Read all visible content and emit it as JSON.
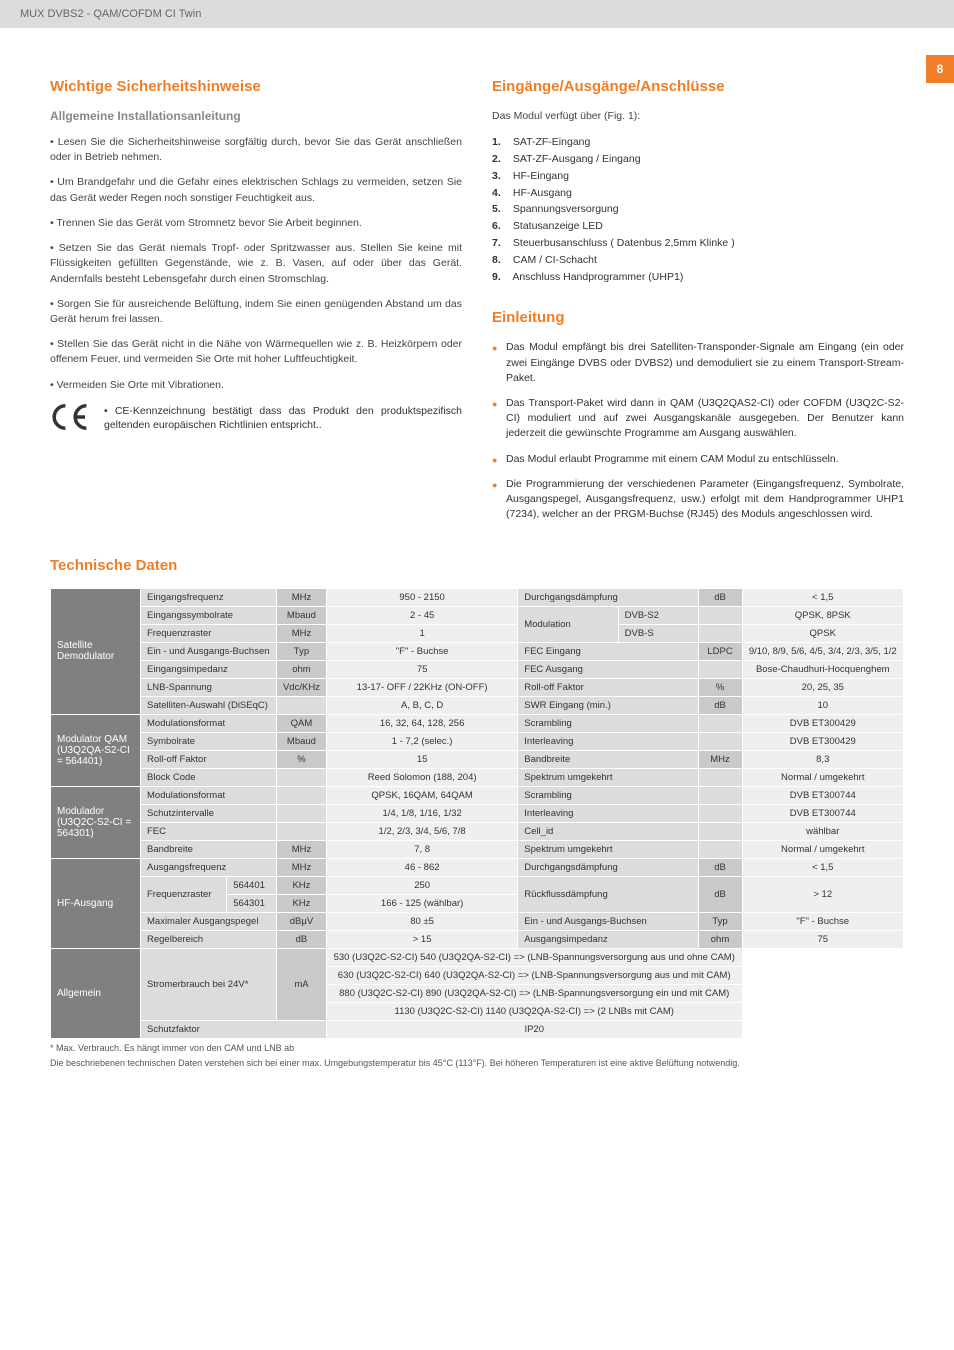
{
  "header": {
    "product": "MUX DVBS2 - QAM/COFDM CI Twin",
    "page_number": "8"
  },
  "colors": {
    "accent": "#f07e26",
    "side_bg": "#808080",
    "lbl_bg": "#dcdcdc",
    "unit_bg": "#c9c9c9",
    "val_bg": "#efefef"
  },
  "left": {
    "title": "Wichtige Sicherheitshinweise",
    "subtitle": "Allgemeine Installationsanleitung",
    "paras": [
      "• Lesen Sie die Sicherheitshinweise sorgfältig durch, bevor Sie das Gerät anschließen oder in Betrieb nehmen.",
      "• Um Brandgefahr und die Gefahr eines elektrischen Schlags zu vermeiden, setzen Sie das Gerät weder Regen noch sonstiger Feuchtigkeit aus.",
      "• Trennen Sie das Gerät vom Stromnetz bevor Sie Arbeit beginnen.",
      "• Setzen Sie das Gerät niemals Tropf- oder Spritzwasser aus. Stellen Sie keine mit Flüssigkeiten gefüllten Gegenstände, wie z. B. Vasen, auf oder über das Gerät. Andernfalls besteht Lebensgefahr durch einen Stromschlag.",
      "• Sorgen Sie für ausreichende Belüftung, indem Sie einen genügenden Abstand um das Gerät herum frei lassen.",
      "• Stellen Sie das Gerät nicht in die Nähe von Wärmequellen wie z. B. Heizkörpern oder offenem Feuer, und vermeiden Sie Orte mit hoher Luftfeuchtigkeit.",
      "• Vermeiden Sie Orte mit Vibrationen."
    ],
    "ce": "• CE-Kennzeichnung bestätigt dass das Produkt den produktspezifisch geltenden europäischen Richtlinien entspricht.."
  },
  "right": {
    "io_title": "Eingänge/Ausgänge/Anschlüsse",
    "io_intro": "Das Modul verfügt über (Fig. 1):",
    "io_list": [
      "SAT-ZF-Eingang",
      "SAT-ZF-Ausgang / Eingang",
      "HF-Eingang",
      "HF-Ausgang",
      "Spannungsversorgung",
      "Statusanzeige LED",
      "Steuerbusanschluss  ( Datenbus 2,5mm Klinke )",
      "CAM / CI-Schacht",
      "Anschluss Handprogrammer (UHP1)"
    ],
    "intro_title": "Einleitung",
    "intro_bullets": [
      "Das Modul empfängt bis drei Satelliten-Transponder-Signale am Eingang (ein oder zwei Eingänge DVBS oder DVBS2) und demoduliert sie zu einem Transport-Stream-Paket.",
      "Das Transport-Paket wird dann in QAM (U3Q2QAS2-CI) oder COFDM (U3Q2C-S2-CI) moduliert und auf zwei Ausgangskanäle ausgegeben. Der Benutzer kann jederzeit die gewünschte Programme am Ausgang auswählen.",
      "Das Modul erlaubt Programme mit einem CAM Modul zu entschlüsseln.",
      "Die Programmierung der verschiedenen Parameter (Eingangsfrequenz, Symbolrate, Ausgangspegel, Ausgangsfrequenz, usw.) erfolgt mit dem Handprogrammer UHP1 (7234), welcher an der PRGM-Buchse (RJ45) des Moduls angeschlossen wird."
    ]
  },
  "tech_title": "Technische Daten",
  "table": {
    "groups": [
      {
        "side": "Satellite Demodulator",
        "rows": [
          [
            "Eingangsfrequenz",
            "MHz",
            "950 - 2150",
            "Durchgangsdämpfung",
            "dB",
            "< 1,5"
          ],
          [
            "Eingangssymbolrate",
            "Mbaud",
            "2 - 45",
            "Modulation | DVB-S2",
            "",
            "QPSK, 8PSK"
          ],
          [
            "Frequenzraster",
            "MHz",
            "1",
            "Modulation | DVB-S",
            "",
            "QPSK"
          ],
          [
            "Ein - und Ausgangs-Buchsen",
            "Typ",
            "\"F\" - Buchse",
            "FEC Eingang",
            "LDPC",
            "9/10, 8/9, 5/6, 4/5, 3/4, 2/3, 3/5, 1/2"
          ],
          [
            "Eingangsimpedanz",
            "ohm",
            "75",
            "FEC Ausgang",
            "",
            "Bose-Chaudhuri-Hocquenghem"
          ],
          [
            "LNB-Spannung",
            "Vdc/KHz",
            "13-17- OFF / 22KHz (ON-OFF)",
            "Roll-off Faktor",
            "%",
            "20, 25, 35"
          ],
          [
            "Satelliten-Auswahl (DiSEqC)",
            "",
            "A, B, C, D",
            "SWR Eingang (min.)",
            "dB",
            "10"
          ]
        ]
      },
      {
        "side": "Modulator QAM (U3Q2QA-S2-CI = 564401)",
        "rows": [
          [
            "Modulationsformat",
            "QAM",
            "16, 32, 64, 128, 256",
            "Scrambling",
            "",
            "DVB ET300429"
          ],
          [
            "Symbolrate",
            "Mbaud",
            "1 - 7,2 (selec.)",
            "Interleaving",
            "",
            "DVB ET300429"
          ],
          [
            "Roll-off Faktor",
            "%",
            "15",
            "Bandbreite",
            "MHz",
            "8,3"
          ],
          [
            "Block Code",
            "",
            "Reed Solomon (188, 204)",
            "Spektrum umgekehrt",
            "",
            "Normal / umgekehrt"
          ]
        ]
      },
      {
        "side": "Modulador (U3Q2C-S2-CI = 564301)",
        "rows": [
          [
            "Modulationsformat",
            "",
            "QPSK, 16QAM, 64QAM",
            "Scrambling",
            "",
            "DVB ET300744"
          ],
          [
            "Schutzintervalle",
            "",
            "1/4, 1/8, 1/16, 1/32",
            "Interleaving",
            "",
            "DVB ET300744"
          ],
          [
            "FEC",
            "",
            "1/2, 2/3, 3/4, 5/6, 7/8",
            "Cell_id",
            "",
            "wählbar"
          ],
          [
            "Bandbreite",
            "MHz",
            "7, 8",
            "Spektrum umgekehrt",
            "",
            "Normal / umgekehrt"
          ]
        ]
      },
      {
        "side": "HF-Ausgang",
        "rows": [
          [
            "Ausgangsfrequenz",
            "MHz",
            "46 - 862",
            "Durchgangsdämpfung",
            "dB",
            "< 1,5"
          ],
          [
            "Frequenzraster | 564401",
            "KHz",
            "250",
            "Rückflussdämpfung",
            "dB",
            "> 12"
          ],
          [
            "Frequenzraster | 564301",
            "KHz",
            "166 - 125 (wählbar)",
            "Rückflussdämpfung",
            "dB",
            "> 12"
          ],
          [
            "Maximaler Ausgangspegel",
            "dBµV",
            "80 ±5",
            "Ein - und Ausgangs-Buchsen",
            "Typ",
            "\"F\" - Buchse"
          ],
          [
            "Regelbereich",
            "dB",
            "> 15",
            "Ausgangsimpedanz",
            "ohm",
            "75"
          ]
        ]
      },
      {
        "side": "Allgemein",
        "power_label": "Stromerbrauch bei 24V*",
        "power_unit": "mA",
        "power_lines": [
          "530 (U3Q2C-S2-CI)  540 (U3Q2QA-S2-CI)  =>  (LNB-Spannungsversorgung aus und ohne CAM)",
          "630 (U3Q2C-S2-CI)  640 (U3Q2QA-S2-CI)  =>  (LNB-Spannungsversorgung aus und mit CAM)",
          "880 (U3Q2C-S2-CI)  890 (U3Q2QA-S2-CI)  =>  (LNB-Spannungsversorgung ein und mit CAM)",
          "1130 (U3Q2C-S2-CI) 1140 (U3Q2QA-S2-CI)  =>  (2 LNBs mit CAM)"
        ],
        "schutz_label": "Schutzfaktor",
        "schutz_val": "IP20"
      }
    ]
  },
  "footnotes": [
    "* Max. Verbrauch. Es hängt immer von den CAM und LNB ab",
    "Die beschriebenen technischen Daten verstehen sich bei einer max. Umgebungstemperatur bis 45°C (113°F). Bei höheren Temperaturen ist eine aktive Belüftung notwendig."
  ]
}
